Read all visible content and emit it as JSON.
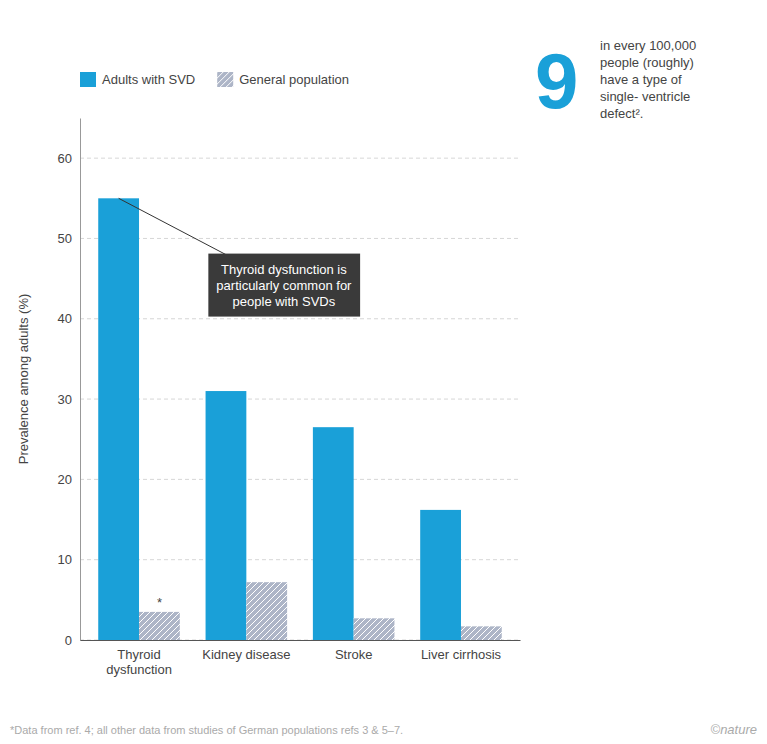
{
  "chart_data": {
    "type": "bar",
    "categories": [
      "Thyroid\ndysfunction",
      "Kidney disease",
      "Stroke",
      "Liver cirrhosis"
    ],
    "series": [
      {
        "name": "Adults with SVD",
        "color": "#1aa0d8",
        "values": [
          55.0,
          31.0,
          26.5,
          16.2
        ]
      },
      {
        "name": "General population",
        "color": "#adb5c7",
        "values": [
          3.5,
          7.2,
          2.7,
          1.7
        ]
      }
    ],
    "ylabel": "Prevalence among adults (%)",
    "ylim": [
      0,
      65
    ],
    "yticks": [
      0,
      10,
      20,
      30,
      40,
      50,
      60
    ],
    "grid": true,
    "legend": "top",
    "annotations": {
      "callout": "Thyroid dysfunction is\nparticularly common for\npeople with SVDs",
      "star": "*",
      "big_number": "9",
      "big_number_text": "in every 100,000\npeople (roughly)\nhave a type of\nsingle- ventricle\ndefect².",
      "footnote": "*Data from ref. 4; all other data from studies of German populations refs 3 & 5–7.",
      "copyright": "©nature"
    }
  }
}
